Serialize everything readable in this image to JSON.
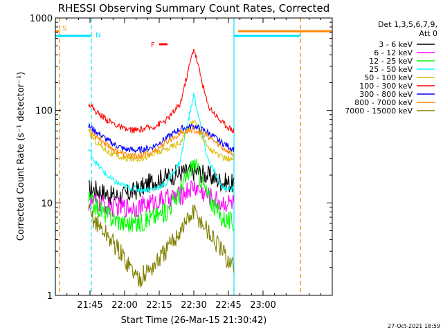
{
  "chart_data": {
    "type": "line",
    "title": "RHESSI Observing Summary Count Rates, Corrected",
    "xlabel": "Start Time (26-Mar-15 21:30:42)",
    "ylabel": "Corrected Count Rate (s⁻¹ detector⁻¹)",
    "y_scale": "log",
    "ylim": [
      1,
      1000
    ],
    "xlim_minutes": [
      21.5,
      23.5
    ],
    "x_tick_labels": [
      "21:45",
      "22:00",
      "22:15",
      "22:30",
      "22:45",
      "23:00"
    ],
    "y_tick_labels": [
      "1",
      "10",
      "100",
      "1000"
    ],
    "legend": {
      "placement": "right",
      "header": "Det 1,3,5,6,7,9,",
      "attenuator": "Att 0"
    },
    "timestamp": "27-Oct-2021 18:59",
    "flag_labels": {
      "saa": "S",
      "night": "N",
      "flare": "F"
    },
    "data_start_min": 21.74,
    "data_end_min": 22.79,
    "series": [
      {
        "name": "3 - 6 keV",
        "color": "#000000",
        "x": [
          21.74,
          21.8,
          21.9,
          22.0,
          22.1,
          22.2,
          22.3,
          22.4,
          22.5,
          22.6,
          22.7,
          22.79
        ],
        "y": [
          14,
          14,
          12,
          12,
          14,
          17,
          19,
          21,
          22,
          20,
          17,
          16
        ]
      },
      {
        "name": "6 - 12 keV",
        "color": "#ff00ff",
        "x": [
          21.74,
          21.8,
          21.9,
          22.0,
          22.1,
          22.2,
          22.3,
          22.4,
          22.5,
          22.6,
          22.7,
          22.79
        ],
        "y": [
          10,
          10,
          9,
          9,
          9,
          10,
          11,
          12,
          15,
          12,
          10,
          10
        ]
      },
      {
        "name": "12 - 25 keV",
        "color": "#00ff00",
        "x": [
          21.74,
          21.8,
          21.9,
          22.0,
          22.1,
          22.2,
          22.3,
          22.4,
          22.5,
          22.6,
          22.7,
          22.79
        ],
        "y": [
          11,
          9,
          7,
          6,
          6,
          7,
          8,
          13,
          28,
          12,
          7,
          6
        ]
      },
      {
        "name": "25 - 50 keV",
        "color": "#00ffff",
        "x": [
          21.74,
          21.8,
          21.9,
          22.0,
          22.1,
          22.2,
          22.3,
          22.4,
          22.5,
          22.6,
          22.7,
          22.79
        ],
        "y": [
          38,
          26,
          18,
          15,
          14,
          14,
          16,
          28,
          150,
          30,
          15,
          14
        ]
      },
      {
        "name": "50 - 100 keV",
        "color": "#ddbb00",
        "x": [
          21.74,
          21.8,
          21.9,
          22.0,
          22.1,
          22.2,
          22.3,
          22.4,
          22.5,
          22.6,
          22.7,
          22.79
        ],
        "y": [
          58,
          45,
          34,
          30,
          30,
          33,
          38,
          45,
          80,
          40,
          31,
          29
        ]
      },
      {
        "name": "100 - 300 keV",
        "color": "#ff0000",
        "x": [
          21.74,
          21.8,
          21.9,
          22.0,
          22.1,
          22.2,
          22.3,
          22.4,
          22.5,
          22.6,
          22.7,
          22.79
        ],
        "y": [
          120,
          95,
          75,
          62,
          61,
          66,
          78,
          115,
          480,
          115,
          75,
          60
        ]
      },
      {
        "name": "300 - 800 keV",
        "color": "#0000ff",
        "x": [
          21.74,
          21.8,
          21.9,
          22.0,
          22.1,
          22.2,
          22.3,
          22.4,
          22.5,
          22.6,
          22.7,
          22.79
        ],
        "y": [
          68,
          58,
          45,
          38,
          37,
          40,
          50,
          63,
          68,
          58,
          45,
          38
        ]
      },
      {
        "name": "800 - 7000 keV",
        "color": "#ff8800",
        "x": [
          21.74,
          21.8,
          21.9,
          22.0,
          22.1,
          22.2,
          22.3,
          22.4,
          22.5,
          22.6,
          22.7,
          22.79
        ],
        "y": [
          63,
          52,
          40,
          33,
          32,
          35,
          45,
          57,
          62,
          53,
          40,
          33
        ]
      },
      {
        "name": "7000 - 15000 keV",
        "color": "#808000",
        "x": [
          21.74,
          21.8,
          21.9,
          22.0,
          22.1,
          22.2,
          22.3,
          22.4,
          22.5,
          22.6,
          22.7,
          22.79
        ],
        "y": [
          8,
          6,
          4,
          2.5,
          1.5,
          2,
          3,
          5,
          8,
          5,
          3,
          2
        ]
      }
    ],
    "flags": {
      "saa": [
        {
          "x0": 21.5,
          "x1": 21.53
        },
        {
          "x0": 22.82,
          "x1": 23.5
        }
      ],
      "night": [
        {
          "x0": 21.5,
          "x1": 21.76
        },
        {
          "x0": 22.79,
          "x1": 23.27
        }
      ],
      "flare": [
        {
          "x0": 22.25,
          "x1": 22.31
        }
      ]
    },
    "bounds": {
      "cyan_solid": [
        21.5,
        22.79
      ],
      "cyan_dashed": [
        21.76,
        23.27
      ],
      "orange_dashed": [
        21.53,
        23.27
      ]
    }
  }
}
